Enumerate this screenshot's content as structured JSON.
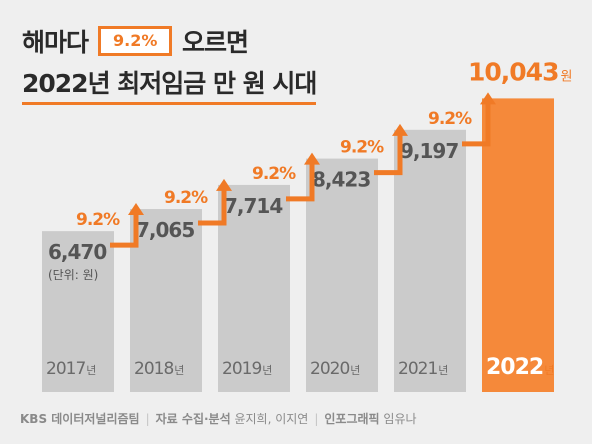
{
  "title": {
    "line1_prefix": "해마다",
    "badge": "9.2%",
    "line1_suffix": "오르면",
    "line2": "2022년 최저임금 만 원 시대"
  },
  "footer": {
    "org": "KBS 데이터저널리즘팀",
    "data_label": "자료 수집·분석",
    "data_people": "윤지희, 이지연",
    "info_label": "인포그래픽",
    "info_people": "임유나"
  },
  "colors": {
    "bar": "#cbcbcb",
    "bar_highlight": "#f5893a",
    "accent": "#f07a26",
    "value_text": "#555555",
    "year_text": "#6a6a6a",
    "background": "#efefef"
  },
  "chart_data": {
    "type": "bar",
    "categories": [
      "2017",
      "2018",
      "2019",
      "2020",
      "2021",
      "2022"
    ],
    "year_suffix": "년",
    "values": [
      6470,
      7065,
      7714,
      8423,
      9197,
      10043
    ],
    "value_labels": [
      "6,470",
      "7,065",
      "7,714",
      "8,423",
      "9,197",
      "10,043"
    ],
    "highlight_value_suffix": "원",
    "unit_note": "(단위: 원)",
    "growth_labels": [
      "9.2%",
      "9.2%",
      "9.2%",
      "9.2%",
      "9.2%"
    ],
    "highlight_index": 5
  }
}
